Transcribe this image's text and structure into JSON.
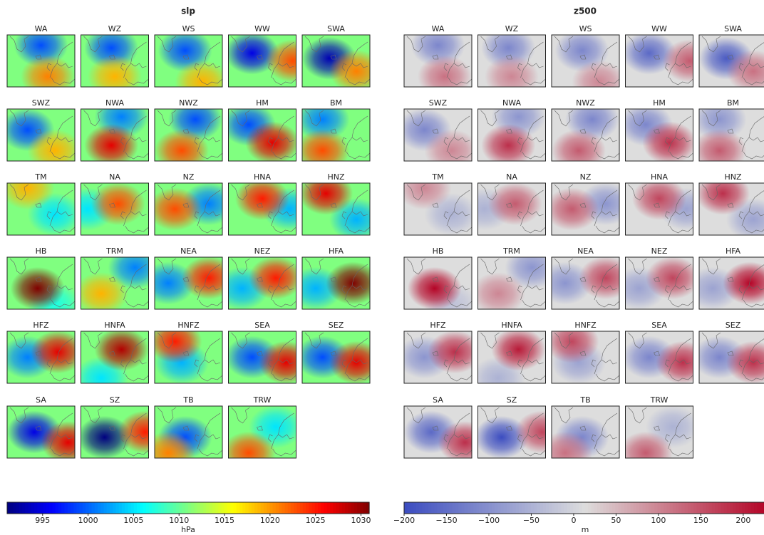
{
  "figures": [
    {
      "title": "slp",
      "panels": [
        "WA",
        "WZ",
        "WS",
        "WW",
        "SWA",
        "SWZ",
        "NWA",
        "NWZ",
        "HM",
        "BM",
        "TM",
        "NA",
        "NZ",
        "HNA",
        "HNZ",
        "HB",
        "TRM",
        "NEA",
        "NEZ",
        "HFA",
        "HFZ",
        "HNFA",
        "HNFZ",
        "SEA",
        "SEZ",
        "SA",
        "SZ",
        "TB",
        "TRW"
      ],
      "colorbar": {
        "label": "hPa",
        "colormap": "jet",
        "lim": [
          991.1,
          1030.9
        ],
        "ticks": [
          995,
          1000,
          1005,
          1010,
          1015,
          1020,
          1025,
          1030
        ]
      }
    },
    {
      "title": "z500",
      "panels": [
        "WA",
        "WZ",
        "WS",
        "WW",
        "SWA",
        "SWZ",
        "NWA",
        "NWZ",
        "HM",
        "BM",
        "TM",
        "NA",
        "NZ",
        "HNA",
        "HNZ",
        "HB",
        "TRM",
        "NEA",
        "NEZ",
        "HFA",
        "HFZ",
        "HNFA",
        "HNFZ",
        "SEA",
        "SEZ",
        "SA",
        "SZ",
        "TB",
        "TRW"
      ],
      "colorbar": {
        "label": "m",
        "colormap": "coolwarm",
        "lim": [
          -200,
          227
        ],
        "ticks": [
          {
            "value": -200,
            "label": "−200"
          },
          {
            "value": -150,
            "label": "−150"
          },
          {
            "value": -100,
            "label": "−100"
          },
          {
            "value": -50,
            "label": "−50"
          },
          0,
          50,
          100,
          150,
          200
        ]
      }
    }
  ]
}
